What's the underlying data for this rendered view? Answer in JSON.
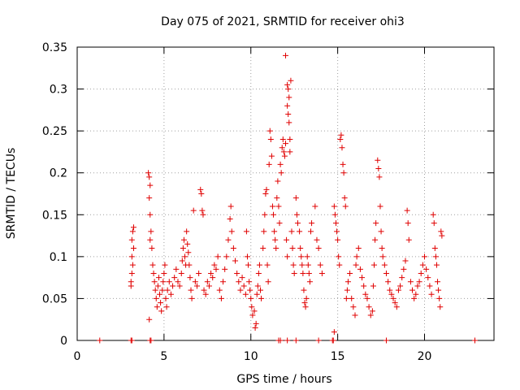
{
  "chart_data": {
    "type": "scatter",
    "title": "Day 075 of 2021, SRMTID for receiver ohi3",
    "xlabel": "GPS time / hours",
    "ylabel": "SRMTID / TECUs",
    "xlim": [
      0,
      24
    ],
    "ylim": [
      0,
      0.35
    ],
    "xticks": [
      0,
      5,
      10,
      15,
      20
    ],
    "xtick_labels": [
      "0",
      "5",
      "10",
      "15",
      "20"
    ],
    "yticks": [
      0,
      0.05,
      0.1,
      0.15,
      0.2,
      0.25,
      0.3,
      0.35
    ],
    "ytick_labels": [
      "0",
      "0.05",
      "0.1",
      "0.15",
      "0.2",
      "0.25",
      "0.3",
      "0.35"
    ],
    "grid": true,
    "marker": "+",
    "color": "#e00000",
    "series": [
      {
        "name": "SRMTID",
        "points": [
          [
            1.3,
            0
          ],
          [
            3.1,
            0
          ],
          [
            3.15,
            0
          ],
          [
            4.2,
            0
          ],
          [
            4.25,
            0
          ],
          [
            11.6,
            0
          ],
          [
            11.7,
            0
          ],
          [
            12.1,
            0
          ],
          [
            12.6,
            0
          ],
          [
            13.9,
            0
          ],
          [
            14.7,
            0
          ],
          [
            14.75,
            0
          ],
          [
            14.8,
            0.01
          ],
          [
            17.8,
            0
          ],
          [
            22.9,
            0
          ],
          [
            3.1,
            0.065
          ],
          [
            3.1,
            0.07
          ],
          [
            3.15,
            0.1
          ],
          [
            3.15,
            0.12
          ],
          [
            3.2,
            0.13
          ],
          [
            3.25,
            0.135
          ],
          [
            3.2,
            0.09
          ],
          [
            3.15,
            0.08
          ],
          [
            3.25,
            0.11
          ],
          [
            4.1,
            0.2
          ],
          [
            4.15,
            0.195
          ],
          [
            4.2,
            0.185
          ],
          [
            4.15,
            0.17
          ],
          [
            4.2,
            0.15
          ],
          [
            4.25,
            0.13
          ],
          [
            4.2,
            0.12
          ],
          [
            4.15,
            0.025
          ],
          [
            4.3,
            0.11
          ],
          [
            4.35,
            0.09
          ],
          [
            4.4,
            0.08
          ],
          [
            4.45,
            0.07
          ],
          [
            4.5,
            0.06
          ],
          [
            4.55,
            0.05
          ],
          [
            4.6,
            0.04
          ],
          [
            4.65,
            0.065
          ],
          [
            4.7,
            0.075
          ],
          [
            4.75,
            0.055
          ],
          [
            4.8,
            0.045
          ],
          [
            4.85,
            0.035
          ],
          [
            4.9,
            0.06
          ],
          [
            4.95,
            0.07
          ],
          [
            5.0,
            0.08
          ],
          [
            5.05,
            0.09
          ],
          [
            5.1,
            0.05
          ],
          [
            5.15,
            0.04
          ],
          [
            5.2,
            0.06
          ],
          [
            5.3,
            0.07
          ],
          [
            5.4,
            0.055
          ],
          [
            5.5,
            0.065
          ],
          [
            5.6,
            0.075
          ],
          [
            5.7,
            0.085
          ],
          [
            5.8,
            0.07
          ],
          [
            5.9,
            0.065
          ],
          [
            6.0,
            0.08
          ],
          [
            6.05,
            0.095
          ],
          [
            6.1,
            0.11
          ],
          [
            6.15,
            0.12
          ],
          [
            6.2,
            0.1
          ],
          [
            6.25,
            0.09
          ],
          [
            6.3,
            0.13
          ],
          [
            6.35,
            0.115
          ],
          [
            6.4,
            0.105
          ],
          [
            6.45,
            0.09
          ],
          [
            6.5,
            0.075
          ],
          [
            6.55,
            0.06
          ],
          [
            6.6,
            0.05
          ],
          [
            6.7,
            0.155
          ],
          [
            6.8,
            0.07
          ],
          [
            6.9,
            0.065
          ],
          [
            7.0,
            0.08
          ],
          [
            7.1,
            0.18
          ],
          [
            7.15,
            0.175
          ],
          [
            7.2,
            0.155
          ],
          [
            7.25,
            0.15
          ],
          [
            7.3,
            0.06
          ],
          [
            7.4,
            0.055
          ],
          [
            7.5,
            0.07
          ],
          [
            7.6,
            0.065
          ],
          [
            7.7,
            0.08
          ],
          [
            7.8,
            0.075
          ],
          [
            7.9,
            0.09
          ],
          [
            8.0,
            0.085
          ],
          [
            8.1,
            0.1
          ],
          [
            8.2,
            0.06
          ],
          [
            8.3,
            0.05
          ],
          [
            8.4,
            0.07
          ],
          [
            8.5,
            0.085
          ],
          [
            8.6,
            0.1
          ],
          [
            8.7,
            0.12
          ],
          [
            8.8,
            0.145
          ],
          [
            8.85,
            0.16
          ],
          [
            8.9,
            0.13
          ],
          [
            9.0,
            0.11
          ],
          [
            9.1,
            0.095
          ],
          [
            9.2,
            0.08
          ],
          [
            9.3,
            0.07
          ],
          [
            9.4,
            0.06
          ],
          [
            9.5,
            0.075
          ],
          [
            9.6,
            0.065
          ],
          [
            9.7,
            0.055
          ],
          [
            9.75,
            0.13
          ],
          [
            9.8,
            0.1
          ],
          [
            9.85,
            0.09
          ],
          [
            9.9,
            0.07
          ],
          [
            9.95,
            0.06
          ],
          [
            10.0,
            0.05
          ],
          [
            10.05,
            0.04
          ],
          [
            10.1,
            0.03
          ],
          [
            10.2,
            0.035
          ],
          [
            10.25,
            0.015
          ],
          [
            10.3,
            0.02
          ],
          [
            10.35,
            0.055
          ],
          [
            10.4,
            0.065
          ],
          [
            10.45,
            0.08
          ],
          [
            10.5,
            0.09
          ],
          [
            10.55,
            0.06
          ],
          [
            10.6,
            0.05
          ],
          [
            10.7,
            0.11
          ],
          [
            10.75,
            0.13
          ],
          [
            10.8,
            0.15
          ],
          [
            10.85,
            0.175
          ],
          [
            10.9,
            0.18
          ],
          [
            10.95,
            0.09
          ],
          [
            11.0,
            0.07
          ],
          [
            11.05,
            0.21
          ],
          [
            11.1,
            0.25
          ],
          [
            11.15,
            0.24
          ],
          [
            11.2,
            0.22
          ],
          [
            11.25,
            0.16
          ],
          [
            11.3,
            0.15
          ],
          [
            11.35,
            0.13
          ],
          [
            11.4,
            0.12
          ],
          [
            11.45,
            0.11
          ],
          [
            11.5,
            0.17
          ],
          [
            11.55,
            0.19
          ],
          [
            11.6,
            0.16
          ],
          [
            11.65,
            0.14
          ],
          [
            11.7,
            0.21
          ],
          [
            11.75,
            0.2
          ],
          [
            11.8,
            0.23
          ],
          [
            11.85,
            0.24
          ],
          [
            11.9,
            0.225
          ],
          [
            11.95,
            0.22
          ],
          [
            12.0,
            0.235
          ],
          [
            12.05,
            0.12
          ],
          [
            12.1,
            0.1
          ],
          [
            12.0,
            0.34
          ],
          [
            12.1,
            0.305
          ],
          [
            12.15,
            0.3
          ],
          [
            12.2,
            0.29
          ],
          [
            12.1,
            0.28
          ],
          [
            12.15,
            0.27
          ],
          [
            12.2,
            0.26
          ],
          [
            12.25,
            0.24
          ],
          [
            12.25,
            0.225
          ],
          [
            12.3,
            0.31
          ],
          [
            12.35,
            0.13
          ],
          [
            12.4,
            0.11
          ],
          [
            12.45,
            0.09
          ],
          [
            12.5,
            0.08
          ],
          [
            12.6,
            0.17
          ],
          [
            12.65,
            0.15
          ],
          [
            12.7,
            0.14
          ],
          [
            12.8,
            0.13
          ],
          [
            12.85,
            0.11
          ],
          [
            12.9,
            0.1
          ],
          [
            12.95,
            0.09
          ],
          [
            13.0,
            0.08
          ],
          [
            13.05,
            0.06
          ],
          [
            13.1,
            0.045
          ],
          [
            13.15,
            0.04
          ],
          [
            13.2,
            0.05
          ],
          [
            13.25,
            0.1
          ],
          [
            13.3,
            0.09
          ],
          [
            13.35,
            0.08
          ],
          [
            13.4,
            0.07
          ],
          [
            13.45,
            0.13
          ],
          [
            13.5,
            0.14
          ],
          [
            13.7,
            0.16
          ],
          [
            13.8,
            0.12
          ],
          [
            13.9,
            0.11
          ],
          [
            14.0,
            0.09
          ],
          [
            14.1,
            0.08
          ],
          [
            14.8,
            0.16
          ],
          [
            14.85,
            0.15
          ],
          [
            14.9,
            0.14
          ],
          [
            14.95,
            0.13
          ],
          [
            15.0,
            0.12
          ],
          [
            15.05,
            0.1
          ],
          [
            15.1,
            0.09
          ],
          [
            15.15,
            0.24
          ],
          [
            15.2,
            0.245
          ],
          [
            15.25,
            0.23
          ],
          [
            15.3,
            0.21
          ],
          [
            15.35,
            0.2
          ],
          [
            15.4,
            0.17
          ],
          [
            15.45,
            0.16
          ],
          [
            15.5,
            0.05
          ],
          [
            15.55,
            0.06
          ],
          [
            15.6,
            0.07
          ],
          [
            15.7,
            0.08
          ],
          [
            15.8,
            0.05
          ],
          [
            15.9,
            0.04
          ],
          [
            16.0,
            0.03
          ],
          [
            16.05,
            0.09
          ],
          [
            16.1,
            0.1
          ],
          [
            16.2,
            0.11
          ],
          [
            16.3,
            0.085
          ],
          [
            16.4,
            0.075
          ],
          [
            16.5,
            0.065
          ],
          [
            16.6,
            0.055
          ],
          [
            16.7,
            0.05
          ],
          [
            16.8,
            0.04
          ],
          [
            16.9,
            0.03
          ],
          [
            17.0,
            0.035
          ],
          [
            17.05,
            0.065
          ],
          [
            17.1,
            0.09
          ],
          [
            17.15,
            0.12
          ],
          [
            17.2,
            0.14
          ],
          [
            17.3,
            0.215
          ],
          [
            17.35,
            0.205
          ],
          [
            17.4,
            0.195
          ],
          [
            17.45,
            0.16
          ],
          [
            17.5,
            0.13
          ],
          [
            17.55,
            0.11
          ],
          [
            17.6,
            0.1
          ],
          [
            17.7,
            0.09
          ],
          [
            17.8,
            0.08
          ],
          [
            17.9,
            0.07
          ],
          [
            18.0,
            0.06
          ],
          [
            18.1,
            0.055
          ],
          [
            18.2,
            0.05
          ],
          [
            18.3,
            0.045
          ],
          [
            18.4,
            0.04
          ],
          [
            18.5,
            0.06
          ],
          [
            18.6,
            0.065
          ],
          [
            18.7,
            0.075
          ],
          [
            18.8,
            0.085
          ],
          [
            18.9,
            0.095
          ],
          [
            19.0,
            0.155
          ],
          [
            19.05,
            0.14
          ],
          [
            19.1,
            0.12
          ],
          [
            19.2,
            0.07
          ],
          [
            19.3,
            0.06
          ],
          [
            19.4,
            0.05
          ],
          [
            19.5,
            0.055
          ],
          [
            19.6,
            0.065
          ],
          [
            19.7,
            0.07
          ],
          [
            19.8,
            0.08
          ],
          [
            19.9,
            0.09
          ],
          [
            20.0,
            0.1
          ],
          [
            20.1,
            0.085
          ],
          [
            20.2,
            0.075
          ],
          [
            20.3,
            0.065
          ],
          [
            20.4,
            0.055
          ],
          [
            20.5,
            0.15
          ],
          [
            20.55,
            0.14
          ],
          [
            20.6,
            0.11
          ],
          [
            20.65,
            0.1
          ],
          [
            20.7,
            0.09
          ],
          [
            20.75,
            0.07
          ],
          [
            20.8,
            0.06
          ],
          [
            20.85,
            0.05
          ],
          [
            20.9,
            0.04
          ],
          [
            20.95,
            0.13
          ],
          [
            21.0,
            0.125
          ]
        ]
      }
    ]
  }
}
